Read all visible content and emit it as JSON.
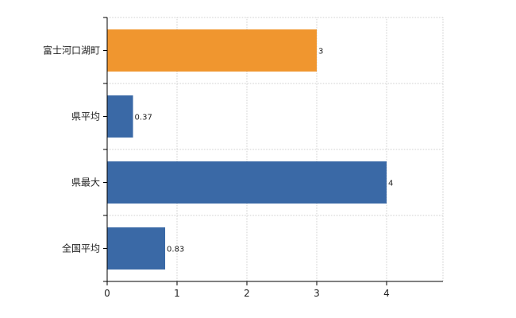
{
  "chart_data": {
    "type": "bar",
    "orientation": "horizontal",
    "categories": [
      "富士河口湖町",
      "県平均",
      "県最大",
      "全国平均"
    ],
    "values": [
      3,
      0.37,
      4,
      0.83
    ],
    "value_labels": [
      "3",
      "0.37",
      "4",
      "0.83"
    ],
    "bar_colors": [
      "#f0962f",
      "#3a69a6",
      "#3a69a6",
      "#3a69a6"
    ],
    "xlim": [
      0,
      4.8
    ],
    "xticks": [
      0,
      1,
      2,
      3,
      4
    ],
    "xtick_labels": [
      "0",
      "1",
      "2",
      "3",
      "4"
    ],
    "grid": true,
    "legend": "none"
  }
}
